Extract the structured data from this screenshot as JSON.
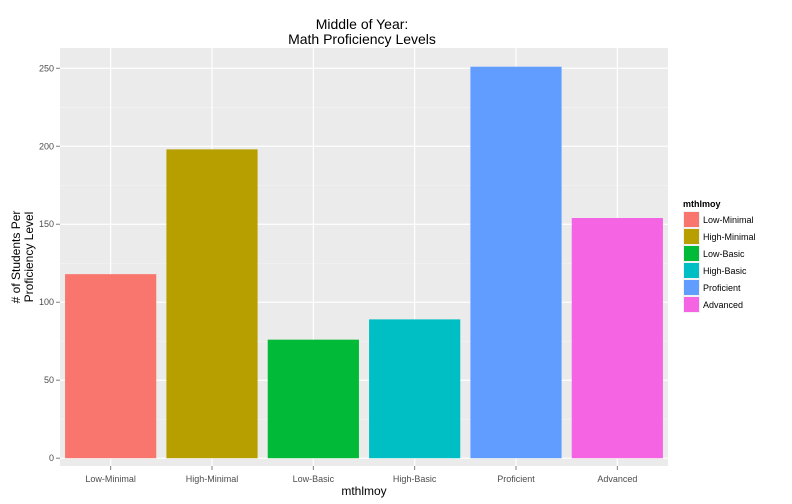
{
  "chart_data": {
    "type": "bar",
    "title_lines": [
      "Middle of Year:",
      "Math Proficiency Levels"
    ],
    "xlabel": "mthlmoy",
    "ylabel_lines": [
      "# of Students Per",
      "Proficiency Level"
    ],
    "categories": [
      "Low-Minimal",
      "High-Minimal",
      "Low-Basic",
      "High-Basic",
      "Proficient",
      "Advanced"
    ],
    "values": [
      118,
      198,
      76,
      89,
      251,
      154
    ],
    "colors": [
      "#F8766D",
      "#B79F00",
      "#00BA38",
      "#00BFC4",
      "#619CFF",
      "#F564E3"
    ],
    "ylim": [
      -5,
      263
    ],
    "yticks": [
      0,
      50,
      100,
      150,
      200,
      250
    ],
    "grid": true,
    "legend": {
      "title": "mthlmoy",
      "position": "right",
      "entries": [
        "Low-Minimal",
        "High-Minimal",
        "Low-Basic",
        "High-Basic",
        "Proficient",
        "Advanced"
      ]
    }
  }
}
